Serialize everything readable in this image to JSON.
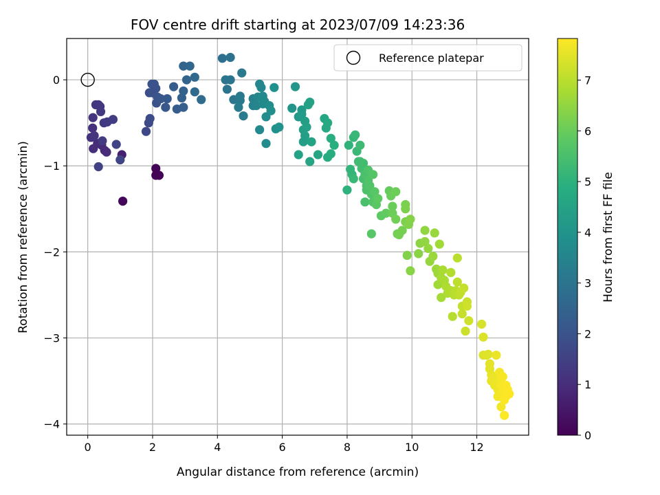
{
  "chart_data": {
    "type": "scatter",
    "title": "FOV centre drift starting at 2023/07/09 14:23:36",
    "xlabel": "Angular distance from reference (arcmin)",
    "ylabel": "Rotation from reference (arcmin)",
    "xlim": [
      -0.65,
      13.6
    ],
    "ylim": [
      -4.13,
      0.48
    ],
    "x_ticks": [
      0,
      2,
      4,
      6,
      8,
      10,
      12
    ],
    "y_ticks": [
      0,
      -1,
      -2,
      -3,
      -4
    ],
    "grid": true,
    "legend": {
      "position": "top-right",
      "entries": [
        "Reference platepar"
      ]
    },
    "reference_point": {
      "x": 0,
      "y": 0,
      "label": "Reference platepar"
    },
    "colorbar": {
      "label": "Hours from first FF file",
      "colormap": "viridis",
      "range": [
        0,
        7.82
      ],
      "ticks": [
        0,
        1,
        2,
        3,
        4,
        5,
        6,
        7
      ]
    },
    "series": [
      {
        "fields": [
          "x",
          "y",
          "hours"
        ],
        "points": [
          [
            1.08,
            -1.41,
            0.1
          ],
          [
            2.1,
            -1.03,
            0.05
          ],
          [
            2.1,
            -1.11,
            0.05
          ],
          [
            2.2,
            -1.11,
            0.05
          ],
          [
            1.05,
            -0.87,
            0.7
          ],
          [
            0.52,
            -0.82,
            0.85
          ],
          [
            0.43,
            -0.76,
            0.9
          ],
          [
            0.3,
            -0.74,
            0.95
          ],
          [
            0.17,
            -0.8,
            1.0
          ],
          [
            0.1,
            -0.67,
            1.1
          ],
          [
            0.15,
            -0.56,
            1.1
          ],
          [
            0.2,
            -0.65,
            1.15
          ],
          [
            0.16,
            -0.44,
            1.15
          ],
          [
            0.38,
            -0.31,
            1.2
          ],
          [
            0.25,
            -0.29,
            1.2
          ],
          [
            0.33,
            -0.29,
            1.25
          ],
          [
            0.4,
            -0.37,
            1.3
          ],
          [
            0.5,
            -0.5,
            1.3
          ],
          [
            0.6,
            -0.49,
            1.35
          ],
          [
            0.78,
            -0.46,
            1.4
          ],
          [
            0.58,
            -0.84,
            0.95
          ],
          [
            0.33,
            -1.01,
            1.5
          ],
          [
            0.45,
            -0.71,
            1.35
          ],
          [
            0.88,
            -0.75,
            1.55
          ],
          [
            1.0,
            -0.93,
            1.6
          ],
          [
            1.8,
            -0.6,
            1.7
          ],
          [
            1.88,
            -0.5,
            1.75
          ],
          [
            1.92,
            -0.45,
            1.8
          ],
          [
            1.9,
            -0.15,
            1.85
          ],
          [
            2.0,
            -0.15,
            1.9
          ],
          [
            2.1,
            -0.1,
            1.9
          ],
          [
            2.05,
            -0.05,
            1.95
          ],
          [
            1.98,
            -0.05,
            1.95
          ],
          [
            2.12,
            -0.27,
            2.0
          ],
          [
            2.15,
            -0.2,
            2.05
          ],
          [
            2.25,
            -0.22,
            2.1
          ],
          [
            2.4,
            -0.32,
            2.15
          ],
          [
            2.45,
            -0.22,
            2.2
          ],
          [
            2.65,
            -0.08,
            2.25
          ],
          [
            2.75,
            -0.34,
            2.3
          ],
          [
            2.95,
            -0.32,
            2.35
          ],
          [
            2.9,
            -0.21,
            2.4
          ],
          [
            2.95,
            -0.13,
            2.45
          ],
          [
            3.05,
            0.0,
            2.5
          ],
          [
            2.95,
            0.16,
            2.55
          ],
          [
            3.15,
            0.16,
            2.6
          ],
          [
            3.3,
            0.03,
            2.65
          ],
          [
            3.3,
            -0.14,
            2.7
          ],
          [
            3.5,
            -0.23,
            2.75
          ],
          [
            4.15,
            0.25,
            2.85
          ],
          [
            4.4,
            0.26,
            2.9
          ],
          [
            4.25,
            0.0,
            2.95
          ],
          [
            4.4,
            0.0,
            3.0
          ],
          [
            4.3,
            -0.11,
            3.0
          ],
          [
            4.5,
            -0.23,
            3.05
          ],
          [
            4.7,
            -0.24,
            3.1
          ],
          [
            4.75,
            0.08,
            3.15
          ],
          [
            4.7,
            -0.19,
            3.2
          ],
          [
            4.65,
            -0.32,
            3.2
          ],
          [
            4.8,
            -0.42,
            3.25
          ],
          [
            5.1,
            -0.22,
            3.4
          ],
          [
            5.1,
            -0.3,
            3.45
          ],
          [
            5.2,
            -0.3,
            3.5
          ],
          [
            5.3,
            -0.05,
            3.55
          ],
          [
            5.35,
            -0.09,
            3.55
          ],
          [
            5.25,
            -0.2,
            3.6
          ],
          [
            5.4,
            -0.19,
            3.65
          ],
          [
            5.45,
            -0.25,
            3.7
          ],
          [
            5.4,
            -0.28,
            3.7
          ],
          [
            5.3,
            -0.58,
            3.65
          ],
          [
            5.5,
            -0.43,
            3.75
          ],
          [
            5.5,
            -0.74,
            3.75
          ],
          [
            5.6,
            -0.3,
            3.8
          ],
          [
            5.65,
            -0.36,
            3.85
          ],
          [
            5.75,
            -0.09,
            3.9
          ],
          [
            5.8,
            -0.57,
            3.9
          ],
          [
            5.9,
            -0.55,
            3.95
          ],
          [
            6.3,
            -0.33,
            4.05
          ],
          [
            6.4,
            -0.08,
            4.1
          ],
          [
            6.5,
            -0.43,
            4.15
          ],
          [
            6.6,
            -0.35,
            4.2
          ],
          [
            6.6,
            -0.4,
            4.25
          ],
          [
            6.7,
            -0.48,
            4.3
          ],
          [
            6.65,
            -0.58,
            4.3
          ],
          [
            6.65,
            -0.72,
            4.35
          ],
          [
            6.7,
            -0.65,
            4.35
          ],
          [
            6.75,
            -0.55,
            4.4
          ],
          [
            6.8,
            -0.29,
            4.45
          ],
          [
            6.85,
            -0.26,
            4.45
          ],
          [
            6.9,
            -0.72,
            4.5
          ],
          [
            6.5,
            -0.87,
            4.45
          ],
          [
            6.85,
            -0.95,
            4.55
          ],
          [
            7.1,
            -0.87,
            4.6
          ],
          [
            7.3,
            -0.45,
            4.65
          ],
          [
            7.35,
            -0.56,
            4.7
          ],
          [
            7.4,
            -0.5,
            4.75
          ],
          [
            7.4,
            -0.9,
            4.8
          ],
          [
            7.5,
            -0.86,
            4.85
          ],
          [
            7.5,
            -0.68,
            4.85
          ],
          [
            7.6,
            -0.76,
            4.9
          ],
          [
            8.0,
            -1.28,
            5.0
          ],
          [
            8.05,
            -0.76,
            5.05
          ],
          [
            8.1,
            -1.04,
            5.1
          ],
          [
            8.15,
            -1.1,
            5.1
          ],
          [
            8.2,
            -0.67,
            5.15
          ],
          [
            8.25,
            -0.64,
            5.2
          ],
          [
            8.2,
            -1.15,
            5.2
          ],
          [
            8.3,
            -0.83,
            5.25
          ],
          [
            8.35,
            -0.95,
            5.3
          ],
          [
            8.4,
            -0.76,
            5.3
          ],
          [
            8.4,
            -0.95,
            5.35
          ],
          [
            8.45,
            -1.03,
            5.4
          ],
          [
            8.5,
            -0.97,
            5.4
          ],
          [
            8.5,
            -1.15,
            5.45
          ],
          [
            8.55,
            -1.1,
            5.5
          ],
          [
            8.55,
            -1.42,
            5.5
          ],
          [
            8.6,
            -1.23,
            5.55
          ],
          [
            8.6,
            -1.28,
            5.55
          ],
          [
            8.65,
            -1.17,
            5.6
          ],
          [
            8.65,
            -1.05,
            5.6
          ],
          [
            8.7,
            -1.23,
            5.65
          ],
          [
            8.75,
            -1.33,
            5.65
          ],
          [
            8.8,
            -1.1,
            5.7
          ],
          [
            8.8,
            -1.42,
            5.7
          ],
          [
            8.75,
            -1.79,
            5.75
          ],
          [
            8.85,
            -1.3,
            5.75
          ],
          [
            8.9,
            -1.45,
            5.8
          ],
          [
            8.95,
            -1.38,
            5.85
          ],
          [
            9.05,
            -1.58,
            5.85
          ],
          [
            9.2,
            -1.55,
            5.9
          ],
          [
            9.3,
            -1.29,
            5.95
          ],
          [
            9.35,
            -1.35,
            6.0
          ],
          [
            9.4,
            -1.47,
            6.0
          ],
          [
            9.4,
            -1.55,
            6.05
          ],
          [
            9.5,
            -1.3,
            6.05
          ],
          [
            9.5,
            -1.62,
            6.1
          ],
          [
            9.55,
            -1.79,
            6.1
          ],
          [
            9.6,
            -1.8,
            6.15
          ],
          [
            9.7,
            -1.75,
            6.15
          ],
          [
            9.8,
            -1.45,
            6.2
          ],
          [
            9.8,
            -1.5,
            6.25
          ],
          [
            9.8,
            -1.65,
            6.25
          ],
          [
            9.85,
            -2.04,
            6.3
          ],
          [
            9.9,
            -1.68,
            6.3
          ],
          [
            9.95,
            -1.62,
            6.35
          ],
          [
            9.95,
            -2.22,
            6.4
          ],
          [
            10.2,
            -2.02,
            6.4
          ],
          [
            10.25,
            -1.9,
            6.45
          ],
          [
            10.4,
            -1.75,
            6.5
          ],
          [
            10.4,
            -1.88,
            6.5
          ],
          [
            10.5,
            -1.96,
            6.55
          ],
          [
            10.55,
            -2.11,
            6.55
          ],
          [
            10.65,
            -2.05,
            6.6
          ],
          [
            10.7,
            -1.78,
            6.6
          ],
          [
            10.75,
            -2.2,
            6.65
          ],
          [
            10.8,
            -2.25,
            6.65
          ],
          [
            10.8,
            -2.38,
            6.7
          ],
          [
            10.85,
            -1.91,
            6.7
          ],
          [
            10.9,
            -2.53,
            6.75
          ],
          [
            10.9,
            -2.3,
            6.75
          ],
          [
            10.95,
            -2.21,
            6.8
          ],
          [
            11.0,
            -2.33,
            6.8
          ],
          [
            11.05,
            -2.4,
            6.85
          ],
          [
            11.1,
            -2.48,
            6.85
          ],
          [
            11.2,
            -2.24,
            6.9
          ],
          [
            11.2,
            -2.45,
            6.9
          ],
          [
            11.25,
            -2.75,
            6.95
          ],
          [
            11.3,
            -2.5,
            6.95
          ],
          [
            11.35,
            -2.45,
            7.0
          ],
          [
            11.4,
            -2.07,
            7.0
          ],
          [
            11.4,
            -2.35,
            7.05
          ],
          [
            11.45,
            -2.5,
            7.05
          ],
          [
            11.5,
            -2.47,
            7.1
          ],
          [
            11.55,
            -2.63,
            7.1
          ],
          [
            11.55,
            -2.72,
            7.15
          ],
          [
            11.6,
            -2.42,
            7.15
          ],
          [
            11.65,
            -2.92,
            7.2
          ],
          [
            11.7,
            -2.58,
            7.2
          ],
          [
            11.7,
            -2.63,
            7.25
          ],
          [
            11.75,
            -2.8,
            7.25
          ],
          [
            12.15,
            -2.84,
            7.35
          ],
          [
            12.2,
            -2.99,
            7.4
          ],
          [
            12.2,
            -3.2,
            7.4
          ],
          [
            12.3,
            -3.2,
            7.45
          ],
          [
            12.35,
            -3.19,
            7.45
          ],
          [
            12.4,
            -3.3,
            7.5
          ],
          [
            12.4,
            -3.36,
            7.5
          ],
          [
            12.45,
            -3.43,
            7.55
          ],
          [
            12.45,
            -3.5,
            7.55
          ],
          [
            12.5,
            -3.47,
            7.6
          ],
          [
            12.55,
            -3.55,
            7.6
          ],
          [
            12.6,
            -3.2,
            7.6
          ],
          [
            12.6,
            -3.52,
            7.65
          ],
          [
            12.65,
            -3.6,
            7.65
          ],
          [
            12.65,
            -3.68,
            7.7
          ],
          [
            12.7,
            -3.4,
            7.7
          ],
          [
            12.75,
            -3.8,
            7.7
          ],
          [
            12.75,
            -3.55,
            7.72
          ],
          [
            12.8,
            -3.45,
            7.75
          ],
          [
            12.8,
            -3.63,
            7.75
          ],
          [
            12.85,
            -3.72,
            7.78
          ],
          [
            12.85,
            -3.9,
            7.78
          ],
          [
            12.9,
            -3.55,
            7.8
          ],
          [
            12.9,
            -3.68,
            7.8
          ],
          [
            12.95,
            -3.6,
            7.82
          ],
          [
            13.0,
            -3.65,
            7.82
          ],
          [
            12.75,
            -3.47,
            7.7
          ]
        ]
      }
    ]
  }
}
